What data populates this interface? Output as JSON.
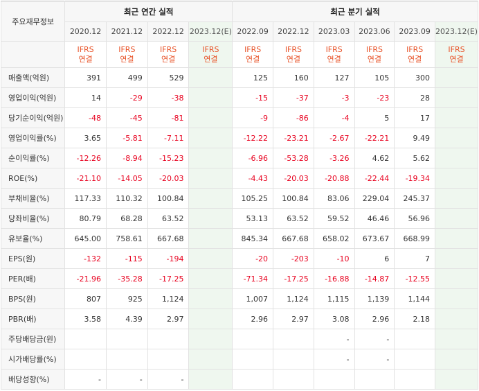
{
  "table": {
    "header_label": "주요재무정보",
    "annual_group": "최근 연간 실적",
    "quarter_group": "최근 분기 실적",
    "annual_periods": [
      "2020.12",
      "2021.12",
      "2022.12",
      "2023.12(E)"
    ],
    "quarter_periods": [
      "2022.09",
      "2022.12",
      "2023.03",
      "2023.06",
      "2023.09",
      "2023.12(E)"
    ],
    "ifrs_line1": "IFRS",
    "ifrs_line2": "연결",
    "rows": [
      {
        "label": "매출액(억원)",
        "values": [
          "391",
          "499",
          "529",
          "",
          "125",
          "160",
          "127",
          "105",
          "300",
          ""
        ]
      },
      {
        "label": "영업이익(억원)",
        "values": [
          "14",
          "-29",
          "-38",
          "",
          "-15",
          "-37",
          "-3",
          "-23",
          "28",
          ""
        ]
      },
      {
        "label": "당기순이익(억원)",
        "values": [
          "-48",
          "-45",
          "-81",
          "",
          "-9",
          "-86",
          "-4",
          "5",
          "17",
          ""
        ]
      },
      {
        "label": "영업이익률(%)",
        "values": [
          "3.65",
          "-5.81",
          "-7.11",
          "",
          "-12.22",
          "-23.21",
          "-2.67",
          "-22.21",
          "9.49",
          ""
        ]
      },
      {
        "label": "순이익률(%)",
        "values": [
          "-12.26",
          "-8.94",
          "-15.23",
          "",
          "-6.96",
          "-53.28",
          "-3.26",
          "4.62",
          "5.62",
          ""
        ]
      },
      {
        "label": "ROE(%)",
        "values": [
          "-21.10",
          "-14.05",
          "-20.03",
          "",
          "-4.43",
          "-20.03",
          "-20.88",
          "-22.44",
          "-19.34",
          ""
        ]
      },
      {
        "label": "부채비율(%)",
        "values": [
          "117.33",
          "110.32",
          "100.84",
          "",
          "105.25",
          "100.84",
          "83.06",
          "229.04",
          "245.37",
          ""
        ]
      },
      {
        "label": "당좌비율(%)",
        "values": [
          "80.79",
          "68.28",
          "63.52",
          "",
          "53.13",
          "63.52",
          "59.52",
          "46.46",
          "56.96",
          ""
        ]
      },
      {
        "label": "유보율(%)",
        "values": [
          "645.00",
          "758.61",
          "667.68",
          "",
          "845.34",
          "667.68",
          "658.02",
          "673.67",
          "668.99",
          ""
        ]
      },
      {
        "label": "EPS(원)",
        "values": [
          "-132",
          "-115",
          "-194",
          "",
          "-20",
          "-203",
          "-10",
          "6",
          "7",
          ""
        ]
      },
      {
        "label": "PER(배)",
        "values": [
          "-21.96",
          "-35.28",
          "-17.25",
          "",
          "-71.34",
          "-17.25",
          "-16.88",
          "-14.87",
          "-12.55",
          ""
        ]
      },
      {
        "label": "BPS(원)",
        "values": [
          "807",
          "925",
          "1,124",
          "",
          "1,007",
          "1,124",
          "1,115",
          "1,139",
          "1,144",
          ""
        ]
      },
      {
        "label": "PBR(배)",
        "values": [
          "3.58",
          "4.39",
          "2.97",
          "",
          "2.96",
          "2.97",
          "3.08",
          "2.96",
          "2.18",
          ""
        ]
      },
      {
        "label": "주당배당금(원)",
        "values": [
          "",
          "",
          "",
          "",
          "",
          "",
          "-",
          "-",
          "",
          ""
        ]
      },
      {
        "label": "시가배당률(%)",
        "values": [
          "",
          "",
          "",
          "",
          "",
          "",
          "-",
          "-",
          "",
          ""
        ]
      },
      {
        "label": "배당성향(%)",
        "values": [
          "-",
          "-",
          "-",
          "",
          "",
          "",
          "",
          "",
          "",
          ""
        ]
      }
    ]
  },
  "colors": {
    "negative": "#e8001e",
    "ifrs": "#e8542a",
    "estimate_bg": "#eff7ef",
    "label_bg": "#f7f7f7"
  }
}
